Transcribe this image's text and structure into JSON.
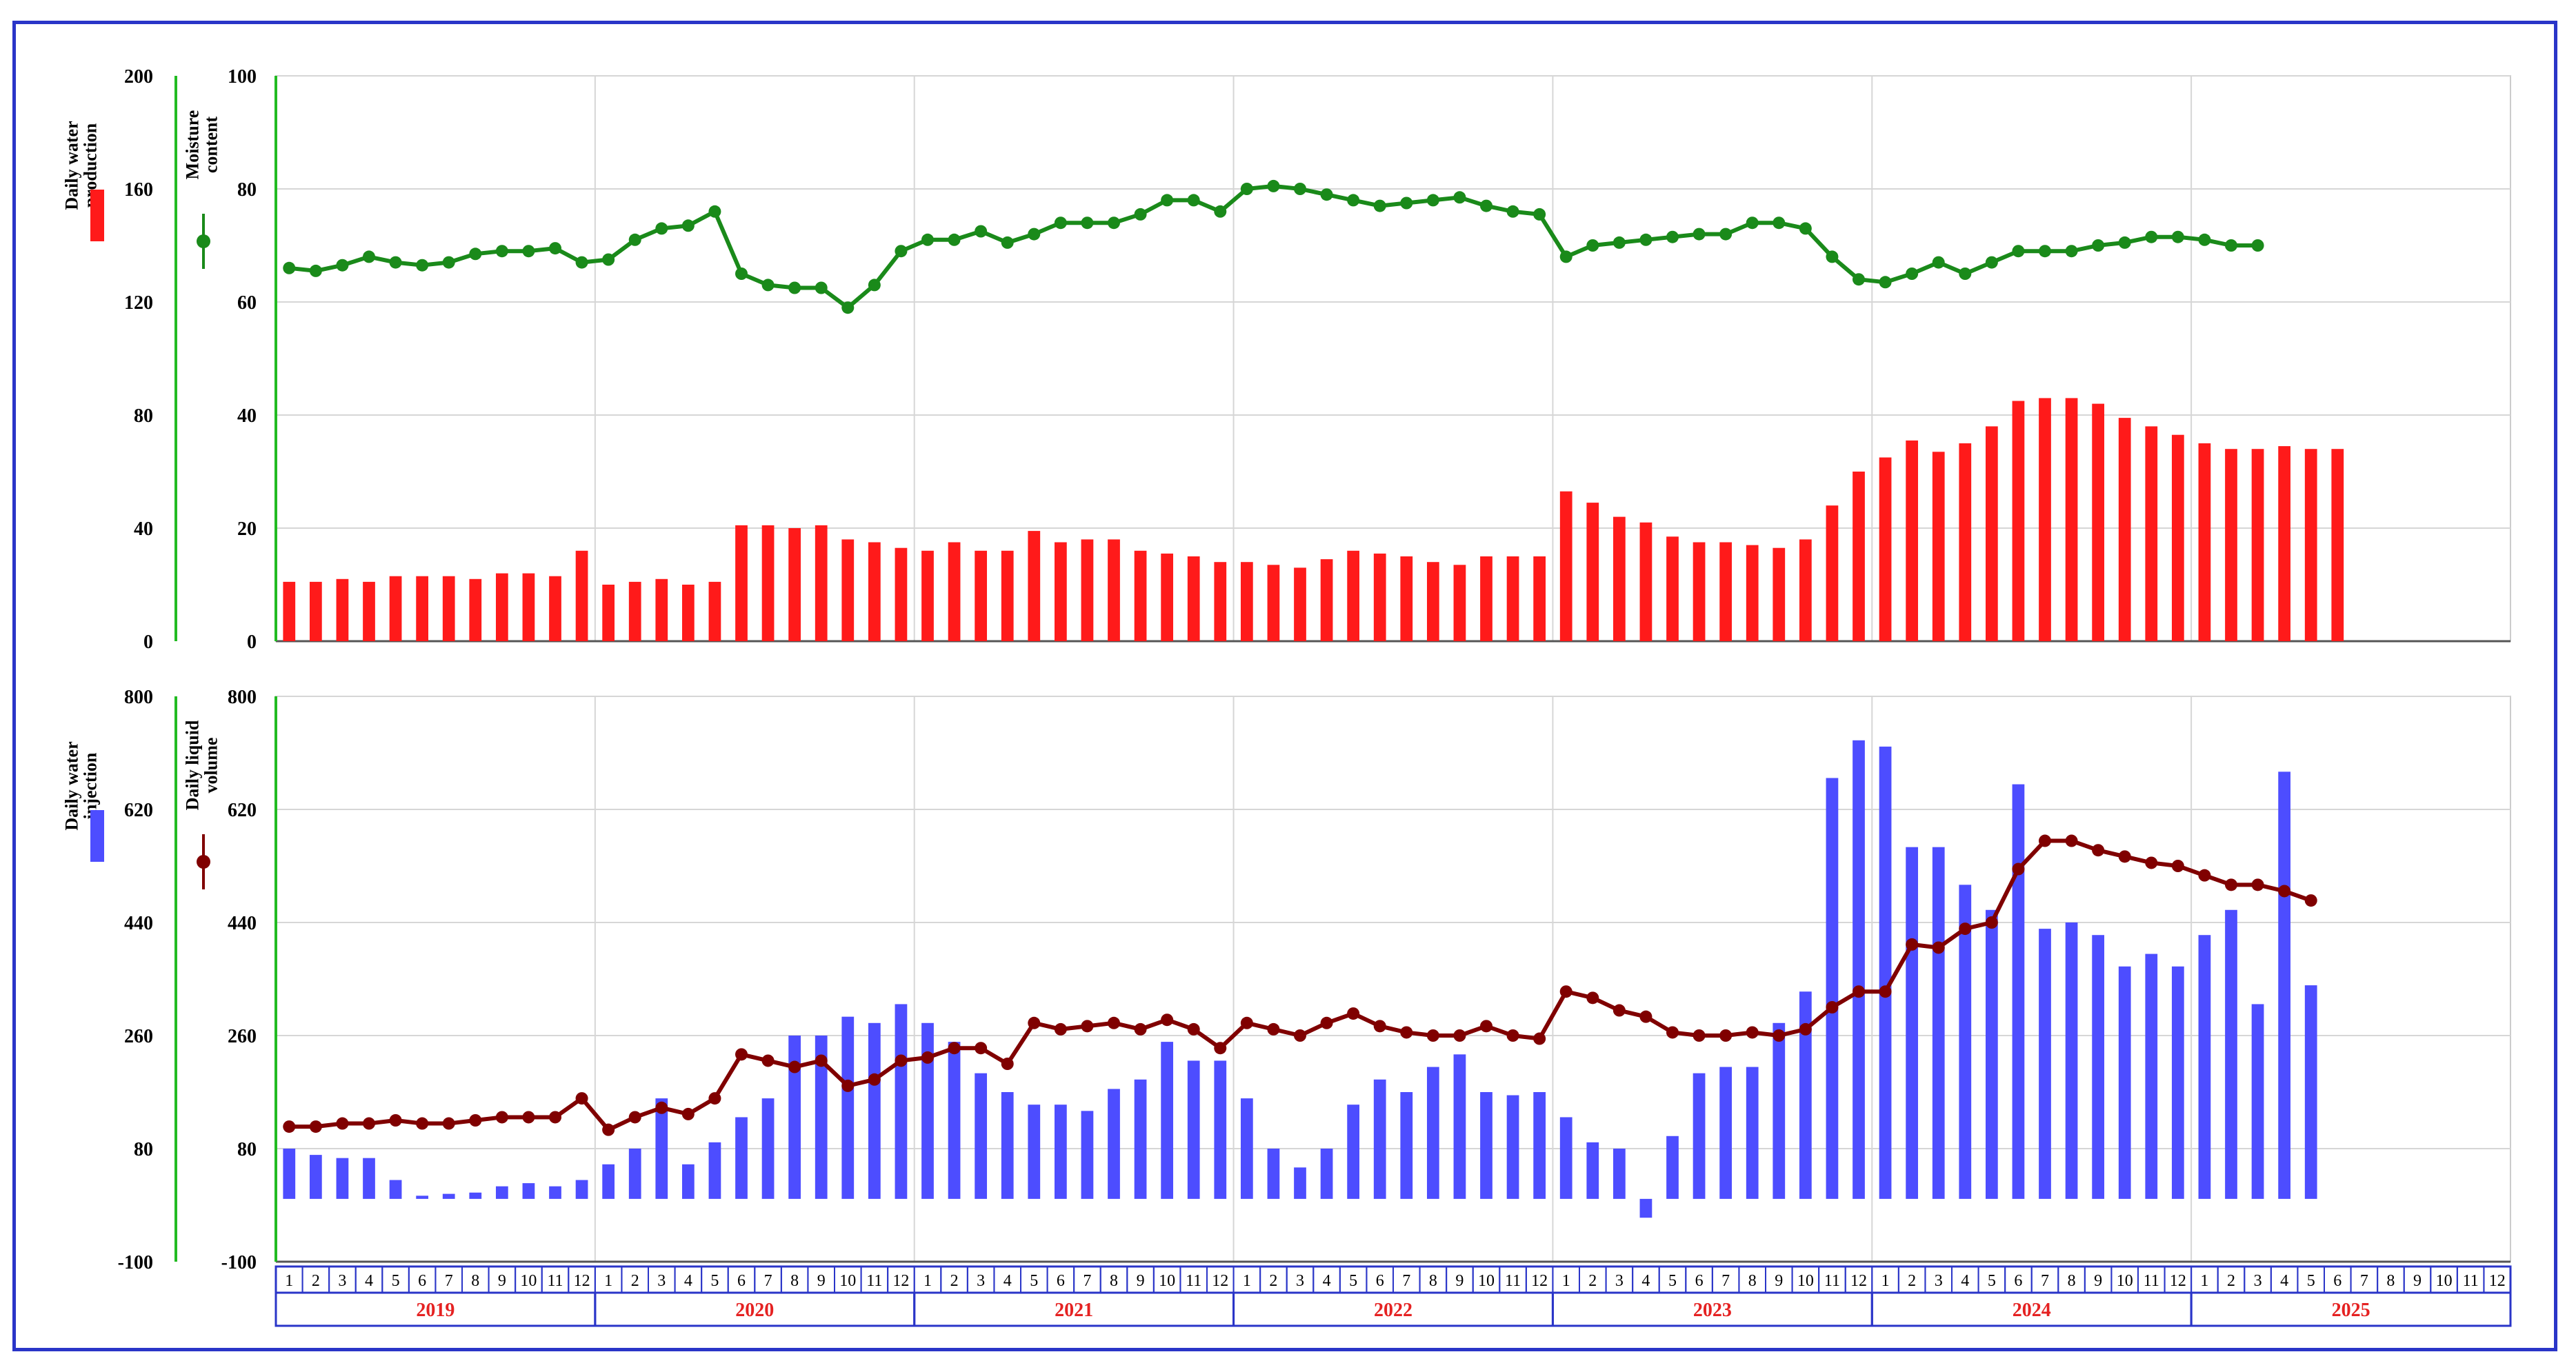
{
  "colors": {
    "water_production": "#ff1a1a",
    "moisture": "#1a8a1a",
    "water_injection": "#4d4dff",
    "liquid_volume": "#800000",
    "axis_green": "#22bb22",
    "frame_blue": "#2a35c8",
    "year_red": "#e52222"
  },
  "months": [
    "1",
    "2",
    "3",
    "4",
    "5",
    "6",
    "7",
    "8",
    "9",
    "10",
    "11",
    "12"
  ],
  "years": [
    "2019",
    "2020",
    "2021",
    "2022",
    "2023",
    "2024",
    "2025"
  ],
  "chart_data": [
    {
      "type": "bar",
      "series": [
        {
          "name": "Daily water production",
          "axis": "left",
          "values": [
            21,
            21,
            22,
            21,
            23,
            23,
            23,
            22,
            24,
            24,
            23,
            32,
            20,
            21,
            22,
            20,
            21,
            41,
            41,
            40,
            41,
            36,
            35,
            33,
            32,
            35,
            32,
            32,
            39,
            35,
            36,
            36,
            32,
            31,
            30,
            28,
            28,
            27,
            26,
            29,
            32,
            31,
            30,
            28,
            27,
            30,
            30,
            30,
            53,
            49,
            44,
            42,
            37,
            35,
            35,
            34,
            33,
            36,
            48,
            60,
            65,
            71,
            67,
            70,
            76,
            85,
            86,
            86,
            84,
            79,
            76,
            73,
            70,
            68,
            68,
            69,
            68,
            68
          ]
        },
        {
          "name": "Moisture content",
          "type": "line",
          "axis": "right",
          "values": [
            66,
            65.5,
            66.5,
            68,
            67,
            66.5,
            67,
            68.5,
            69,
            69,
            69.5,
            67,
            67.5,
            71,
            73,
            73.5,
            76,
            65,
            63,
            62.5,
            62.5,
            59,
            63,
            69,
            71,
            71,
            72.5,
            70.5,
            72,
            74,
            74,
            74,
            75.5,
            78,
            78,
            76,
            80,
            80.5,
            80,
            79,
            78,
            77,
            77.5,
            78,
            78.5,
            77,
            76,
            75.5,
            68,
            70,
            70.5,
            71,
            71.5,
            72,
            72,
            74,
            74,
            73,
            68,
            64,
            63.5,
            65,
            67,
            65,
            67,
            69,
            69,
            69,
            70,
            70.5,
            71.5,
            71.5,
            71,
            70,
            70
          ]
        }
      ],
      "left_axis": {
        "label": "Daily water production",
        "ticks": [
          0,
          40,
          80,
          120,
          160,
          200
        ],
        "ylim": [
          0,
          200
        ]
      },
      "right_axis": {
        "label": "Moisture content",
        "ticks": [
          0,
          20,
          40,
          60,
          80,
          100
        ],
        "ylim": [
          0,
          100
        ]
      },
      "grid": true
    },
    {
      "type": "bar",
      "series": [
        {
          "name": "Daily water injection",
          "axis": "left",
          "values": [
            80,
            70,
            65,
            65,
            30,
            5,
            8,
            10,
            20,
            25,
            20,
            30,
            55,
            80,
            160,
            55,
            90,
            130,
            160,
            260,
            260,
            290,
            280,
            310,
            280,
            250,
            200,
            170,
            150,
            150,
            140,
            175,
            190,
            250,
            220,
            220,
            160,
            80,
            50,
            80,
            150,
            190,
            170,
            210,
            230,
            170,
            165,
            170,
            130,
            90,
            80,
            -30,
            100,
            200,
            210,
            210,
            280,
            330,
            670,
            730,
            720,
            560,
            560,
            500,
            460,
            660,
            430,
            440,
            420,
            370,
            390,
            370,
            420,
            460,
            310,
            680,
            340
          ]
        },
        {
          "name": "Daily liquid volume",
          "type": "line",
          "axis": "right",
          "values": [
            115,
            115,
            120,
            120,
            125,
            120,
            120,
            125,
            130,
            130,
            130,
            160,
            110,
            130,
            145,
            135,
            160,
            230,
            220,
            210,
            220,
            180,
            190,
            220,
            225,
            240,
            240,
            215,
            280,
            270,
            275,
            280,
            270,
            285,
            270,
            240,
            280,
            270,
            260,
            280,
            295,
            275,
            265,
            260,
            260,
            275,
            260,
            255,
            330,
            320,
            300,
            290,
            265,
            260,
            260,
            265,
            260,
            270,
            305,
            330,
            330,
            405,
            400,
            430,
            440,
            525,
            570,
            570,
            555,
            545,
            535,
            530,
            515,
            500,
            500,
            490,
            475
          ]
        }
      ],
      "left_axis": {
        "label": "Daily water injection",
        "ticks": [
          -100,
          80,
          260,
          440,
          620,
          800
        ],
        "ylim": [
          -100,
          800
        ]
      },
      "right_axis": {
        "label": "Daily liquid volume",
        "ticks": [
          -100,
          80,
          260,
          440,
          620,
          800
        ],
        "ylim": [
          -100,
          800
        ]
      },
      "grid": true
    }
  ]
}
